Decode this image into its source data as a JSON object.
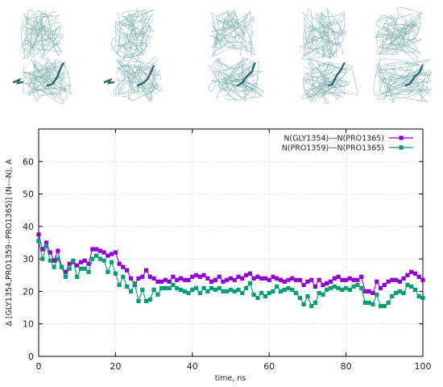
{
  "snapshots": {
    "count": 5,
    "structure_color": "#7fb2b3",
    "highlight_color": "#2e6470"
  },
  "chart_data": {
    "type": "line",
    "xlabel": "time, ns",
    "ylabel": "Δ [GLY1354,PRO1359--PRO1365)] (N---N), A",
    "xlim": [
      0,
      100
    ],
    "ylim": [
      0,
      70
    ],
    "x_ticks": [
      "0",
      "20",
      "40",
      "60",
      "80",
      "100"
    ],
    "y_ticks": [
      "0",
      "10",
      "20",
      "30",
      "40",
      "50",
      "60"
    ],
    "grid": true,
    "legend_position": "top-right",
    "series": [
      {
        "name": "N(GLY1354)---N(PRO1365)",
        "color": "#9400d3",
        "marker": "square",
        "x": [
          0,
          1,
          2,
          3,
          4,
          5,
          6,
          7,
          8,
          9,
          10,
          11,
          12,
          13,
          14,
          15,
          16,
          17,
          18,
          19,
          20,
          21,
          22,
          23,
          24,
          25,
          26,
          27,
          28,
          29,
          30,
          31,
          32,
          33,
          34,
          35,
          36,
          37,
          38,
          39,
          40,
          41,
          42,
          43,
          44,
          45,
          46,
          47,
          48,
          49,
          50,
          51,
          52,
          53,
          54,
          55,
          56,
          57,
          58,
          59,
          60,
          61,
          62,
          63,
          64,
          65,
          66,
          67,
          68,
          69,
          70,
          71,
          72,
          73,
          74,
          75,
          76,
          77,
          78,
          79,
          80,
          81,
          82,
          83,
          84,
          85,
          86,
          87,
          88,
          89,
          90,
          91,
          92,
          93,
          94,
          95,
          96,
          97,
          98,
          99,
          100
        ],
        "y": [
          37.5,
          33.0,
          35.0,
          32.0,
          29.5,
          32.5,
          27.5,
          26.0,
          28.5,
          29.0,
          28.0,
          29.0,
          29.5,
          28.5,
          33.0,
          33.0,
          32.5,
          32.0,
          31.0,
          31.5,
          32.0,
          28.5,
          27.5,
          26.5,
          24.0,
          22.0,
          24.0,
          24.5,
          26.5,
          24.5,
          24.0,
          23.0,
          23.0,
          23.5,
          23.0,
          24.5,
          23.5,
          24.0,
          23.5,
          23.5,
          24.5,
          25.0,
          24.5,
          25.0,
          24.0,
          23.0,
          23.5,
          24.5,
          23.0,
          23.5,
          24.0,
          23.5,
          24.5,
          24.0,
          25.0,
          25.5,
          24.0,
          24.5,
          24.0,
          24.0,
          23.5,
          24.5,
          24.0,
          23.5,
          23.0,
          23.5,
          24.0,
          23.5,
          23.5,
          22.0,
          23.0,
          23.5,
          21.5,
          23.5,
          22.0,
          22.5,
          23.0,
          24.0,
          24.5,
          23.5,
          23.5,
          24.0,
          23.5,
          23.5,
          24.5,
          20.0,
          20.0,
          19.5,
          23.0,
          21.0,
          22.0,
          23.0,
          23.5,
          23.5,
          23.0,
          24.0,
          25.0,
          26.0,
          25.5,
          24.5,
          23.5
        ]
      },
      {
        "name": "N(PRO1359)---N(PRO1365)",
        "color": "#009e73",
        "marker": "square",
        "x": [
          0,
          1,
          2,
          3,
          4,
          5,
          6,
          7,
          8,
          9,
          10,
          11,
          12,
          13,
          14,
          15,
          16,
          17,
          18,
          19,
          20,
          21,
          22,
          23,
          24,
          25,
          26,
          27,
          28,
          29,
          30,
          31,
          32,
          33,
          34,
          35,
          36,
          37,
          38,
          39,
          40,
          41,
          42,
          43,
          44,
          45,
          46,
          47,
          48,
          49,
          50,
          51,
          52,
          53,
          54,
          55,
          56,
          57,
          58,
          59,
          60,
          61,
          62,
          63,
          64,
          65,
          66,
          67,
          68,
          69,
          70,
          71,
          72,
          73,
          74,
          75,
          76,
          77,
          78,
          79,
          80,
          81,
          82,
          83,
          84,
          85,
          86,
          87,
          88,
          89,
          90,
          91,
          92,
          93,
          94,
          95,
          96,
          97,
          98,
          99,
          100
        ],
        "y": [
          35.5,
          30.0,
          34.0,
          29.5,
          27.5,
          30.0,
          27.5,
          24.5,
          27.0,
          29.5,
          24.5,
          27.0,
          27.0,
          26.0,
          30.0,
          31.0,
          30.0,
          29.5,
          26.0,
          29.0,
          25.5,
          22.0,
          24.5,
          21.5,
          20.0,
          22.5,
          17.0,
          20.5,
          17.0,
          17.5,
          20.5,
          19.0,
          21.0,
          21.0,
          21.0,
          22.0,
          21.0,
          20.5,
          20.0,
          19.5,
          20.5,
          21.0,
          19.5,
          21.0,
          20.0,
          21.0,
          20.5,
          21.0,
          20.0,
          20.0,
          20.5,
          20.0,
          20.5,
          19.5,
          21.0,
          22.5,
          19.0,
          18.0,
          19.5,
          18.5,
          19.5,
          20.0,
          21.5,
          20.0,
          20.5,
          21.0,
          20.5,
          19.5,
          18.0,
          16.0,
          18.5,
          15.5,
          16.5,
          19.5,
          19.0,
          20.5,
          21.0,
          21.5,
          21.0,
          20.5,
          21.0,
          20.5,
          21.5,
          22.0,
          21.0,
          16.5,
          16.5,
          16.0,
          19.0,
          15.5,
          15.5,
          16.5,
          18.5,
          19.5,
          20.0,
          19.5,
          22.0,
          21.5,
          20.5,
          18.5,
          18.0
        ]
      }
    ]
  }
}
